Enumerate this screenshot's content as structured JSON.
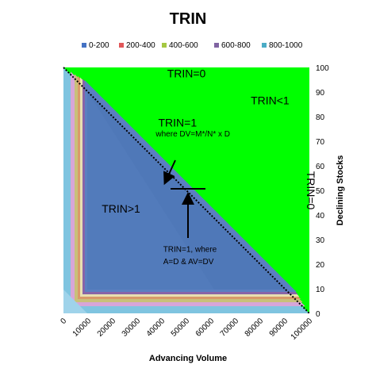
{
  "chart_data": {
    "type": "area",
    "title": "TRIN",
    "xlabel": "Advancing Volume",
    "ylabel": "Declining Stocks",
    "xlim": [
      0,
      100000
    ],
    "ylim": [
      0,
      100
    ],
    "x_ticks": [
      "0",
      "10000",
      "20000",
      "30000",
      "40000",
      "50000",
      "60000",
      "70000",
      "80000",
      "90000",
      "100000"
    ],
    "y_ticks": [
      "0",
      "10",
      "20",
      "30",
      "40",
      "50",
      "60",
      "70",
      "80",
      "90",
      "100"
    ],
    "legend": {
      "placement": "top",
      "entries": [
        {
          "name": "0-200",
          "color": "#4472c4"
        },
        {
          "name": "200-400",
          "color": "#e15759"
        },
        {
          "name": "400-600",
          "color": "#a5c842"
        },
        {
          "name": "600-800",
          "color": "#8064a2"
        },
        {
          "name": "800-1000",
          "color": "#4bacc6"
        }
      ]
    },
    "regions": {
      "trin_less_than_one_color": "#00ff00",
      "trin_greater_than_one_color": "#4f78b8"
    },
    "boundary_line": {
      "label": "TRIN=1",
      "points": [
        [
          0,
          100
        ],
        [
          100000,
          0
        ]
      ]
    },
    "marker": {
      "x": 50000,
      "y": 50
    },
    "annotations": [
      {
        "text": "TRIN=0",
        "x": 50000,
        "y": 96
      },
      {
        "text": "TRIN<1",
        "x": 84000,
        "y": 85
      },
      {
        "text": "TRIN=1",
        "x": 45000,
        "y": 76
      },
      {
        "text": "where DV=M*/N* x D",
        "x": 44000,
        "y": 72
      },
      {
        "text": "TRIN>1",
        "x": 22000,
        "y": 41
      },
      {
        "text": "TRIN=1, where",
        "x": 47000,
        "y": 25
      },
      {
        "text": "A=D & AV=DV",
        "x": 47000,
        "y": 20
      },
      {
        "text": "TRIN=0",
        "x": 99000,
        "y": 50,
        "rotated": true
      }
    ],
    "grid": false
  }
}
